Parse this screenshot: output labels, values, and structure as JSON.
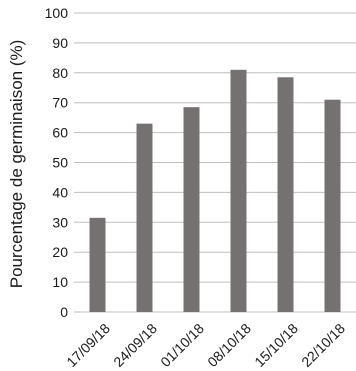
{
  "chart_data": {
    "type": "bar",
    "categories": [
      "17/09/18",
      "24/09/18",
      "01/10/18",
      "08/10/18",
      "15/10/18",
      "22/10/18"
    ],
    "values": [
      31.5,
      63,
      68.5,
      81,
      78.5,
      71
    ],
    "title": "",
    "xlabel": "",
    "ylabel": "Pourcentage de germinaison (%)",
    "ylim": [
      0,
      100
    ],
    "yticks": [
      0,
      10,
      20,
      30,
      40,
      50,
      60,
      70,
      80,
      90,
      100
    ],
    "grid": true,
    "bar_color": "#767171",
    "grid_color": "#bfbfbf"
  }
}
